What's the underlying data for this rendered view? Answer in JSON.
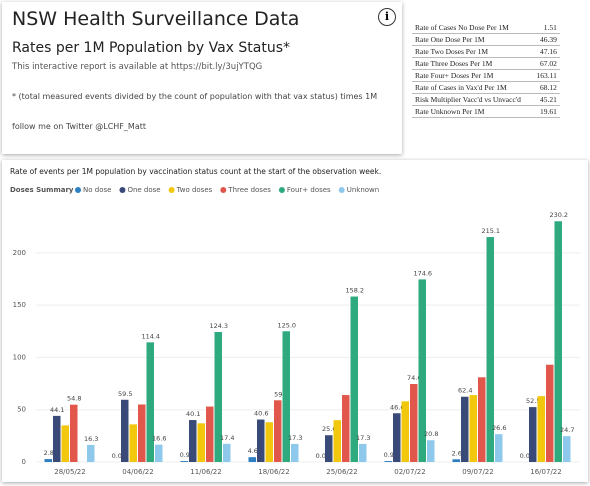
{
  "header": {
    "title": "NSW Health Surveillance Data",
    "subtitle": "Rates per 1M Population by Vax Status*",
    "report_text": "This interactive report is available at https://bit.ly/3ujYTQG",
    "note": "* (total measured events divided by the count of population with that vax status) times 1M",
    "twitter": "follow me on Twitter @LCHF_Matt"
  },
  "table": {
    "rows": [
      [
        "Rate of Cases No Dose Per 1M",
        "1.51"
      ],
      [
        "Rate One Dose Per 1M",
        "46.39"
      ],
      [
        "Rate Two Doses Per 1M",
        "47.16"
      ],
      [
        "Rate Three Doses Per 1M",
        "67.02"
      ],
      [
        "Rate Four+ Doses Per 1M",
        "163.11"
      ],
      [
        "Rate of Cases in Vax'd Per 1M",
        "68.12"
      ],
      [
        "Risk Multiplier Vacc'd vs Unvacc'd",
        "45.21"
      ],
      [
        "Rate Unknown Per 1M",
        "19.61"
      ]
    ]
  },
  "chart_data": {
    "type": "bar",
    "title": "Rate of events per 1M population by vaccination status count at the start of the observation week.",
    "legend_title": "Doses Summary",
    "categories": [
      "28/05/22",
      "04/06/22",
      "11/06/22",
      "18/06/22",
      "25/06/22",
      "02/07/22",
      "09/07/22",
      "16/07/22"
    ],
    "ylim": [
      0,
      240
    ],
    "yticks": [
      0,
      50,
      100,
      150,
      200
    ],
    "grid": true,
    "series": [
      {
        "name": "No dose",
        "color": "#2d7ec3",
        "values": [
          2.8,
          0.0,
          0.9,
          4.6,
          0.0,
          0.9,
          2.6,
          0.0
        ],
        "value_labels": [
          "2.8",
          "0.0",
          "0.9",
          "4.6",
          "0.0",
          "0.9",
          "2.6",
          "0.0"
        ]
      },
      {
        "name": "One dose",
        "color": "#3a4a78",
        "values": [
          44.1,
          59.5,
          40.1,
          40.6,
          25.6,
          46.6,
          62.4,
          52.5
        ],
        "value_labels": [
          "44.1",
          "59.5",
          "40.1",
          "40.6",
          "25.6",
          "46.6",
          "62.4",
          "52.5"
        ]
      },
      {
        "name": "Two doses",
        "color": "#f2c80f",
        "values": [
          35,
          36,
          37,
          38,
          40,
          58,
          64,
          63
        ]
      },
      {
        "name": "Three doses",
        "color": "#e1574b",
        "values": [
          54.8,
          55,
          53,
          59,
          64,
          74.6,
          81,
          93
        ],
        "value_labels": [
          "54.8",
          null,
          null,
          "59",
          null,
          "74.6",
          null,
          null
        ]
      },
      {
        "name": "Four+ doses",
        "color": "#2eaa7e",
        "values": [
          null,
          114.4,
          124.3,
          125.0,
          158.2,
          174.6,
          215.1,
          230.2
        ],
        "value_labels": [
          null,
          "114.4",
          "124.3",
          "125.0",
          "158.2",
          "174.6",
          "215.1",
          "230.2"
        ]
      },
      {
        "name": "Unknown",
        "color": "#8ec9ec",
        "values": [
          16.3,
          16.6,
          17.4,
          17.3,
          17.3,
          20.8,
          26.6,
          24.7
        ],
        "value_labels": [
          "16.3",
          "16.6",
          "17.4",
          "17.3",
          "17.3",
          "20.8",
          "26.6",
          "24.7"
        ]
      }
    ]
  }
}
